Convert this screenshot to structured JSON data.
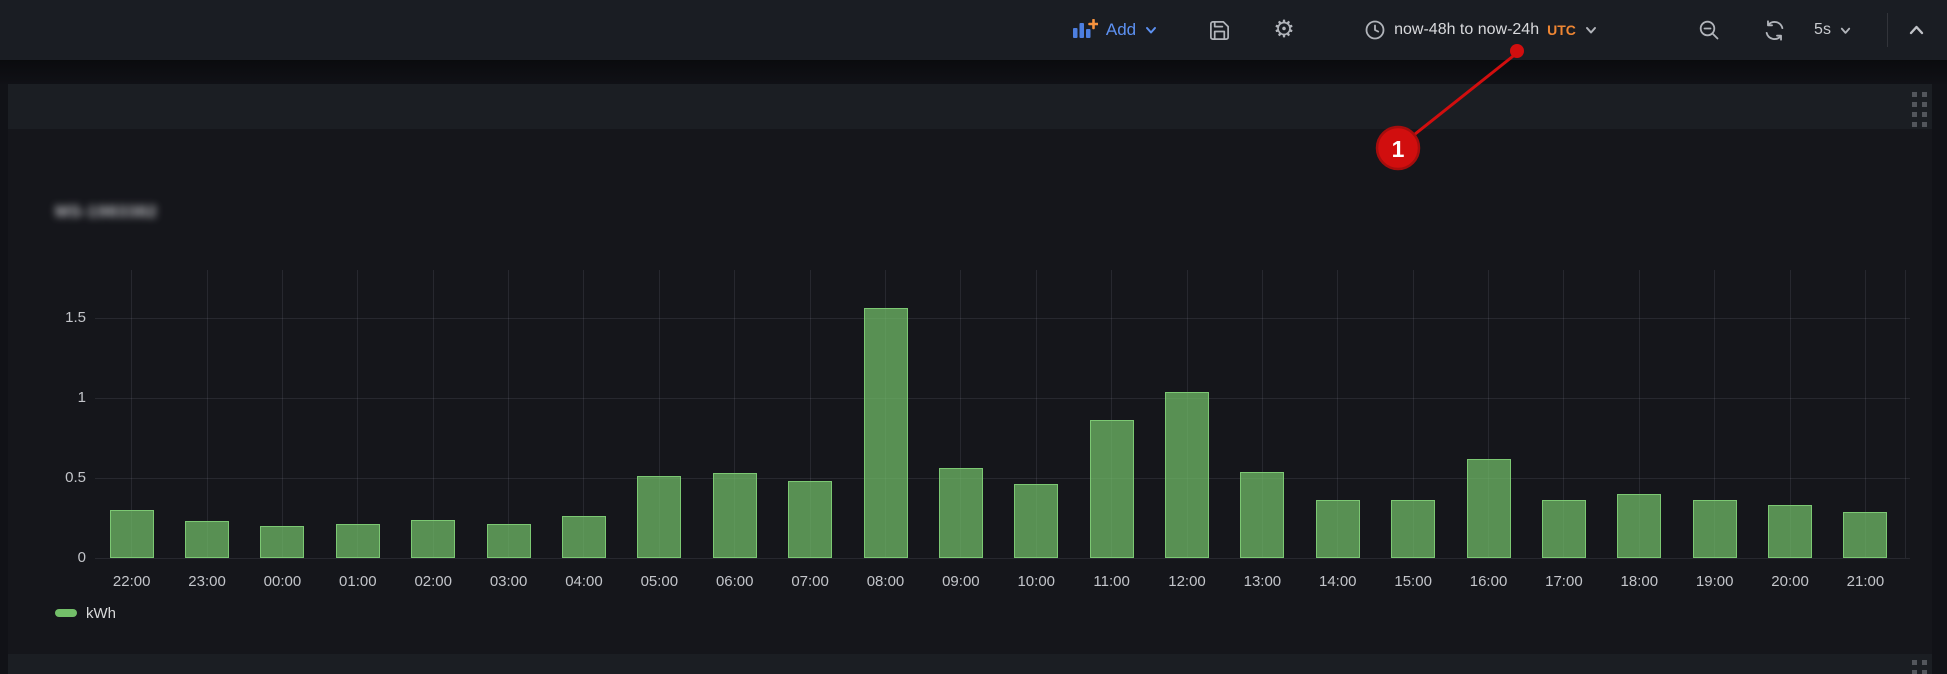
{
  "toolbar": {
    "add_label": "Add",
    "time_range": "now-48h to now-24h",
    "timezone": "UTC",
    "refresh_interval": "5s",
    "icons": {
      "add": "bar-chart-plus-icon",
      "save": "save-icon",
      "settings": "gear-icon",
      "time": "clock-icon",
      "zoom_out": "zoom-out-icon",
      "refresh": "refresh-icon",
      "interval_dropdown": "chevron-down-icon",
      "collapse": "chevron-up-icon"
    }
  },
  "panel": {
    "title": "MS-1983382"
  },
  "chart_data": {
    "type": "bar",
    "categories": [
      "22:00",
      "23:00",
      "00:00",
      "01:00",
      "02:00",
      "03:00",
      "04:00",
      "05:00",
      "06:00",
      "07:00",
      "08:00",
      "09:00",
      "10:00",
      "11:00",
      "12:00",
      "13:00",
      "14:00",
      "15:00",
      "16:00",
      "17:00",
      "18:00",
      "19:00",
      "20:00",
      "21:00"
    ],
    "values": [
      0.3,
      0.23,
      0.2,
      0.21,
      0.24,
      0.21,
      0.26,
      0.51,
      0.53,
      0.48,
      1.56,
      0.56,
      0.46,
      0.86,
      1.04,
      0.54,
      0.36,
      0.36,
      0.62,
      0.36,
      0.4,
      0.36,
      0.33,
      0.29
    ],
    "series_name": "kWh",
    "unit": "kWh",
    "xlabel": "",
    "ylabel": "",
    "ylim": [
      0,
      1.8
    ],
    "y_ticks": [
      0,
      0.5,
      1,
      1.5
    ],
    "grid": true,
    "legend_position": "bottom-left",
    "bar_color": "#73BF69"
  },
  "annotation": {
    "label": "1",
    "color": "#d10e0e"
  },
  "colors": {
    "accent_blue": "#5d91f2",
    "accent_orange": "#ef8633",
    "bar_green": "#73BF69",
    "annotation_red": "#d10e0e",
    "toolbar_bg": "#1a1d23",
    "panel_bg": "#15161b"
  }
}
